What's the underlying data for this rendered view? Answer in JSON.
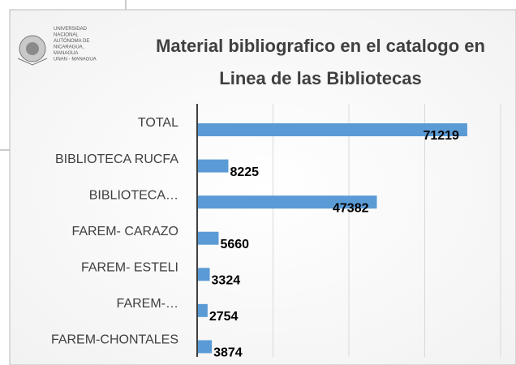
{
  "chart_data": {
    "type": "bar",
    "orientation": "horizontal",
    "title": [
      "Material bibliografico en el catalogo en",
      "Linea de las Bibliotecas"
    ],
    "logo": [
      "UNIVERSIDAD",
      "NACIONAL",
      "AUTÓNOMA DE",
      "NICARAGUA,",
      "MANAGUA",
      "UNAN - MANAGUA"
    ],
    "categories": [
      "TOTAL",
      "BIBLIOTECA RUCFA",
      "BIBLIOTECA…",
      "FAREM- CARAZO",
      "FAREM- ESTELI",
      "FAREM-…",
      "FAREM-CHONTALES"
    ],
    "values": [
      71219,
      8225,
      47382,
      5660,
      3324,
      2754,
      3874
    ],
    "color": "#5b9bd5",
    "xlim": [
      0,
      80000
    ],
    "xticks": [
      0,
      20000,
      40000,
      60000,
      80000
    ],
    "grid": true
  }
}
